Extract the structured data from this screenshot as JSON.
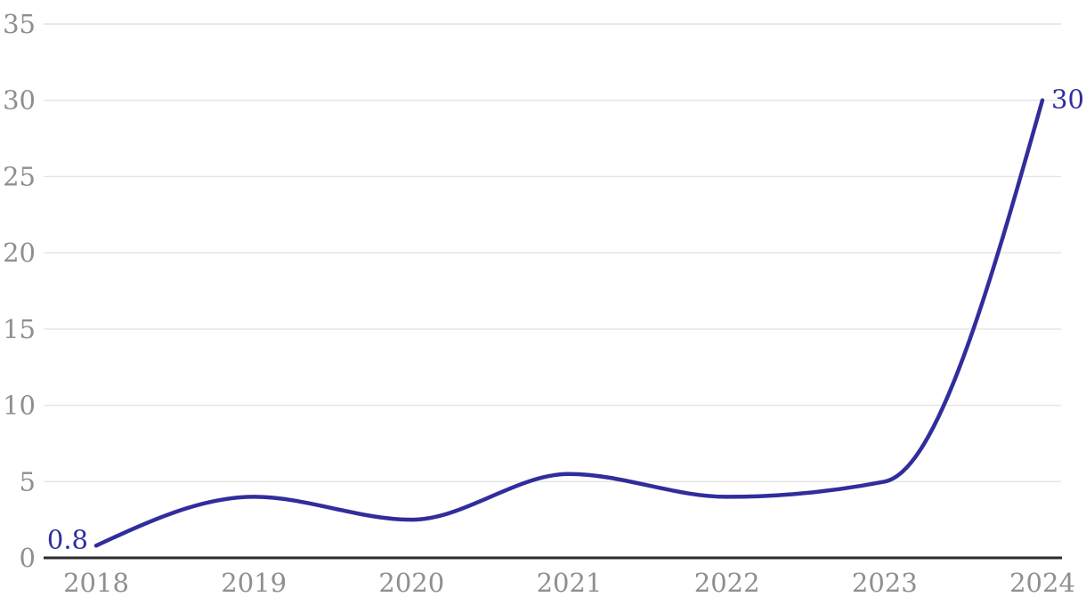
{
  "chart_data": {
    "type": "line",
    "title": "",
    "xlabel": "",
    "ylabel": "",
    "categories": [
      "2018",
      "2019",
      "2020",
      "2021",
      "2022",
      "2023",
      "2024"
    ],
    "series": [
      {
        "name": "value",
        "values": [
          0.8,
          4,
          2.5,
          5.5,
          4,
          5,
          30
        ]
      }
    ],
    "ylim": [
      0,
      35
    ],
    "yticks": [
      0,
      5,
      10,
      15,
      20,
      25,
      30,
      35
    ],
    "grid": "horizontal",
    "legend_position": "none",
    "curve": "monotone-x",
    "point_labels": {
      "first": "0.8",
      "last": "30"
    },
    "colors": {
      "line": "#302d9c",
      "point_label": "#302d9c",
      "tick_label": "#8f8f8f",
      "axis": "#2b2b2b",
      "gridline": "#e4e4e4",
      "background": "#ffffff"
    }
  }
}
